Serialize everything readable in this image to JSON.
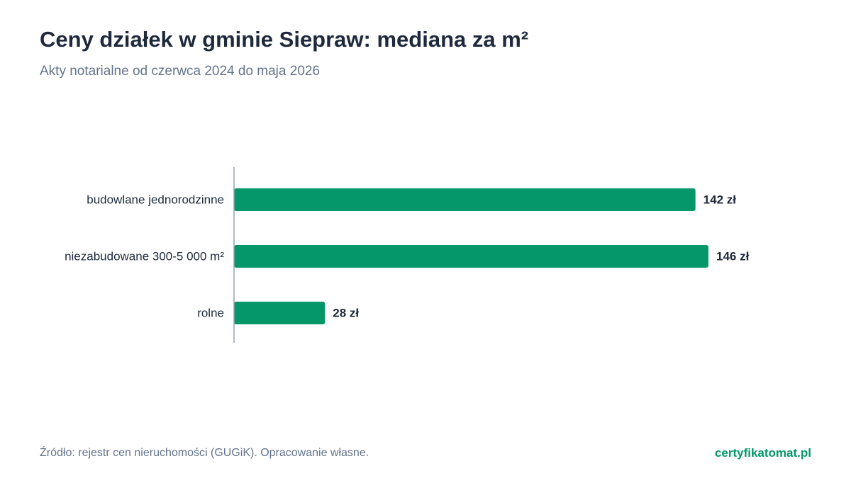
{
  "header": {
    "title": "Ceny działek w gminie Siepraw: mediana za m²",
    "subtitle": "Akty notarialne od czerwca 2024 do maja 2026"
  },
  "footer": {
    "source": "Źródło: rejestr cen nieruchomości (GUGiK). Opracowanie własne.",
    "brand": "certyfikatomat.pl"
  },
  "colors": {
    "bar": "#059669",
    "axis": "#94a3b8",
    "category_text": "#1e293b",
    "value_text": "#1e293b"
  },
  "chart_data": {
    "type": "bar",
    "orientation": "horizontal",
    "title": "Ceny działek w gminie Siepraw: mediana za m²",
    "subtitle": "Akty notarialne od czerwca 2024 do maja 2026",
    "categories": [
      "budowlane jednorodzinne",
      "niezabudowane 300-5 000 m²",
      "rolne"
    ],
    "values": [
      142,
      146,
      28
    ],
    "value_labels": [
      "142 zł",
      "146 zł",
      "28 zł"
    ],
    "xlim": [
      0,
      146
    ],
    "grid": false,
    "legend": "none"
  }
}
